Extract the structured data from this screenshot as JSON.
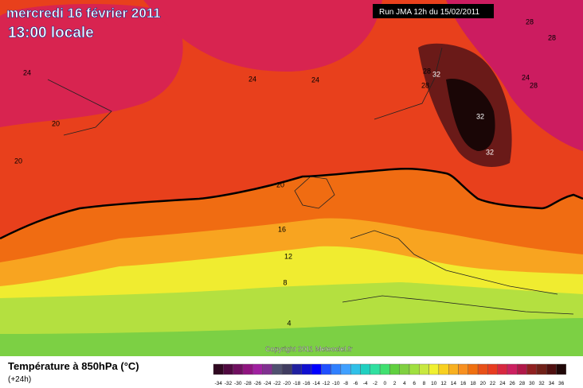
{
  "header": {
    "title": "mercredi 16 février 2011",
    "subtitle": "13:00 locale",
    "run": "Run JMA 12h du 15/02/2011"
  },
  "map": {
    "contour_labels": [
      "24",
      "24",
      "24",
      "20",
      "20",
      "20",
      "16",
      "12",
      "8",
      "4",
      "28",
      "28",
      "28",
      "28",
      "24",
      "28",
      "32",
      "32",
      "32"
    ],
    "copyright": "Copyright 2011 Meteociel.fr"
  },
  "legend": {
    "title": "Température à 850hPa (°C)",
    "horizon": "(+24h)",
    "scale": [
      -34,
      -32,
      -30,
      -28,
      -26,
      -24,
      -22,
      -20,
      -18,
      -16,
      -14,
      -12,
      -10,
      -8,
      -6,
      -4,
      -2,
      0,
      2,
      4,
      6,
      8,
      10,
      12,
      14,
      16,
      18,
      20,
      22,
      24,
      26,
      28,
      30,
      32,
      34,
      36
    ],
    "colors": [
      "#300820",
      "#500a40",
      "#701060",
      "#901480",
      "#a020a0",
      "#803090",
      "#505070",
      "#403c60",
      "#2020a0",
      "#1010d0",
      "#0000ff",
      "#2050ff",
      "#3080ff",
      "#40a0ff",
      "#30c0e8",
      "#20d0c0",
      "#30e0a0",
      "#40e070",
      "#60d040",
      "#80d040",
      "#a0e040",
      "#c8e840",
      "#f0f030",
      "#f8d020",
      "#f8b020",
      "#f89020",
      "#f07010",
      "#e85018",
      "#e83c20",
      "#d82840",
      "#cc2060",
      "#b01848",
      "#902020",
      "#702018",
      "#501010",
      "#200808"
    ]
  }
}
